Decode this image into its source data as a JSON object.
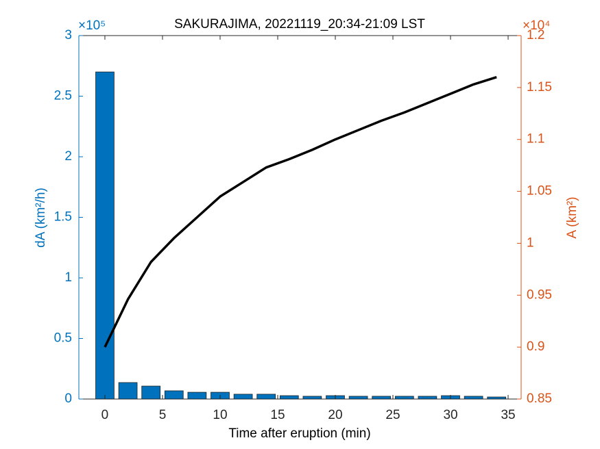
{
  "chart_data": {
    "type": "bar-line",
    "title": "SAKURAJIMA, 20221119_20:34-21:09 LST",
    "x_label": "Time after eruption (min)",
    "y_label": "dA (km²/h)",
    "y2_label": "A (km²)",
    "y_exponent_label": "×10⁵",
    "y2_exponent_label": "×10⁴",
    "x": [
      0,
      2,
      4,
      6,
      8,
      10,
      12,
      14,
      16,
      18,
      20,
      22,
      24,
      26,
      28,
      30,
      32,
      34
    ],
    "series": [
      {
        "name": "dA",
        "type": "bar",
        "color": "#0072BD",
        "values": [
          2.7,
          0.136,
          0.107,
          0.068,
          0.056,
          0.056,
          0.04,
          0.04,
          0.028,
          0.023,
          0.028,
          0.023,
          0.023,
          0.023,
          0.023,
          0.028,
          0.023,
          0.017
        ]
      },
      {
        "name": "A",
        "type": "line",
        "axis": "y2",
        "color": "#000000",
        "values": [
          0.9,
          0.946,
          0.982,
          1.005,
          1.025,
          1.045,
          1.059,
          1.073,
          1.081,
          1.09,
          1.1,
          1.109,
          1.118,
          1.126,
          1.135,
          1.144,
          1.153,
          1.16
        ]
      }
    ],
    "xlim": [
      -2.26,
      36.13
    ],
    "xticks": [
      0,
      5,
      10,
      15,
      20,
      25,
      30,
      35
    ],
    "ylim": [
      0,
      3
    ],
    "yticks": [
      0,
      0.5,
      1,
      1.5,
      2,
      2.5,
      3
    ],
    "y_color": "#0072BD",
    "y2lim": [
      0.85,
      1.2
    ],
    "y2ticks": [
      0.85,
      0.9,
      0.95,
      1,
      1.05,
      1.1,
      1.15,
      1.2
    ],
    "y2_color": "#D95319"
  }
}
